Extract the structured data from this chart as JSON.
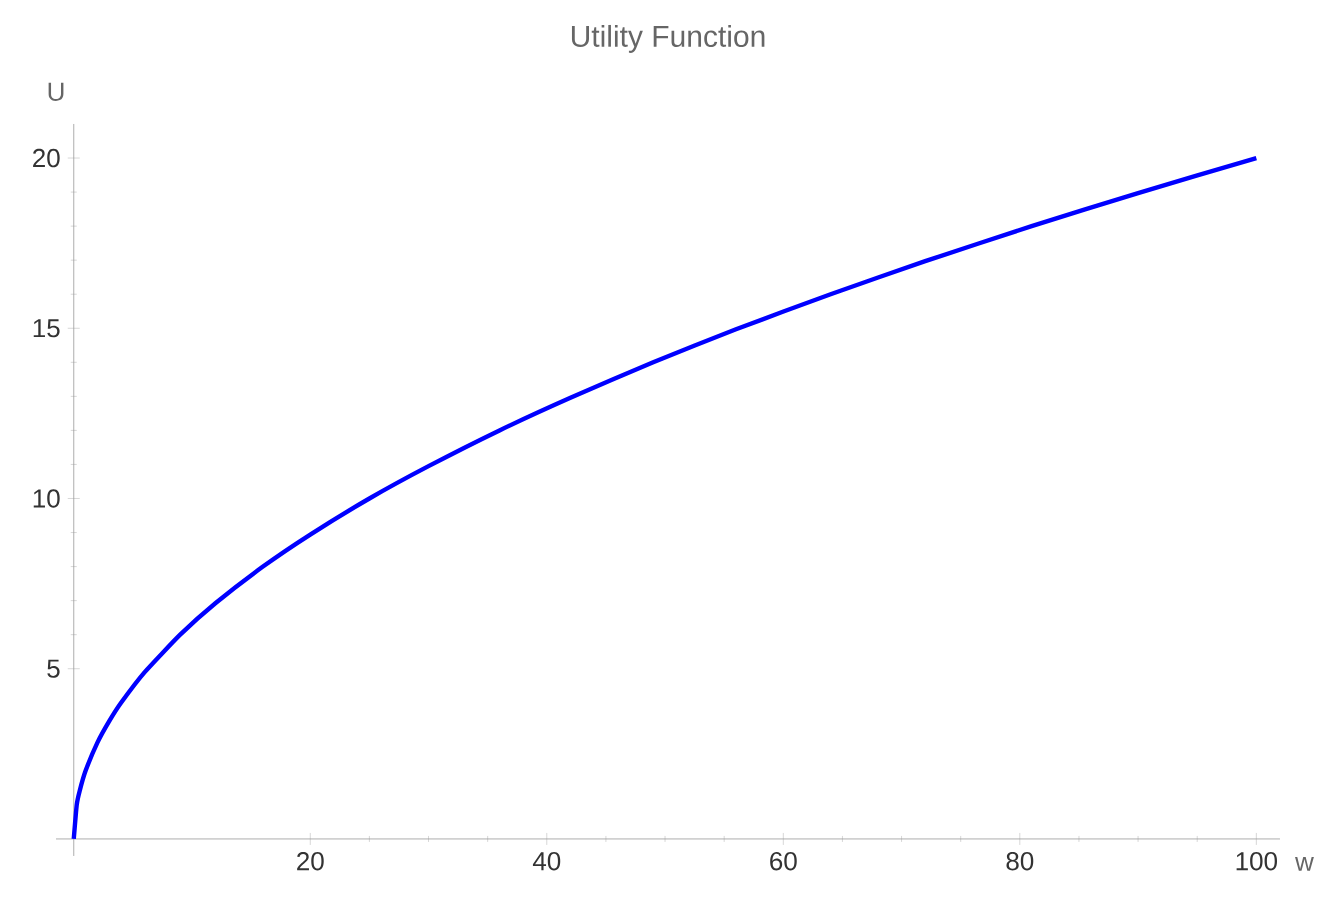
{
  "chart_data": {
    "type": "line",
    "title": "Utility Function",
    "xlabel": "w",
    "ylabel": "U",
    "x": [
      0,
      0.25,
      0.5,
      1,
      2,
      3,
      4,
      6,
      9,
      12,
      16,
      20,
      25,
      30,
      36,
      42,
      49,
      56,
      64,
      72,
      81,
      90,
      100
    ],
    "series": [
      {
        "color": "#0000ff",
        "values": [
          0,
          1,
          1.41,
          2,
          2.83,
          3.46,
          4,
          4.9,
          6,
          6.93,
          8,
          8.94,
          10,
          10.95,
          12,
          12.96,
          14,
          14.97,
          16,
          16.97,
          18,
          18.97,
          20
        ]
      }
    ],
    "xlim": [
      -1.5,
      102
    ],
    "ylim": [
      -0.5,
      21
    ],
    "xticks": [
      20,
      40,
      60,
      80,
      100
    ],
    "yticks": [
      5,
      10,
      15,
      20
    ],
    "grid": false,
    "marker": "none",
    "line_style": "solid"
  }
}
